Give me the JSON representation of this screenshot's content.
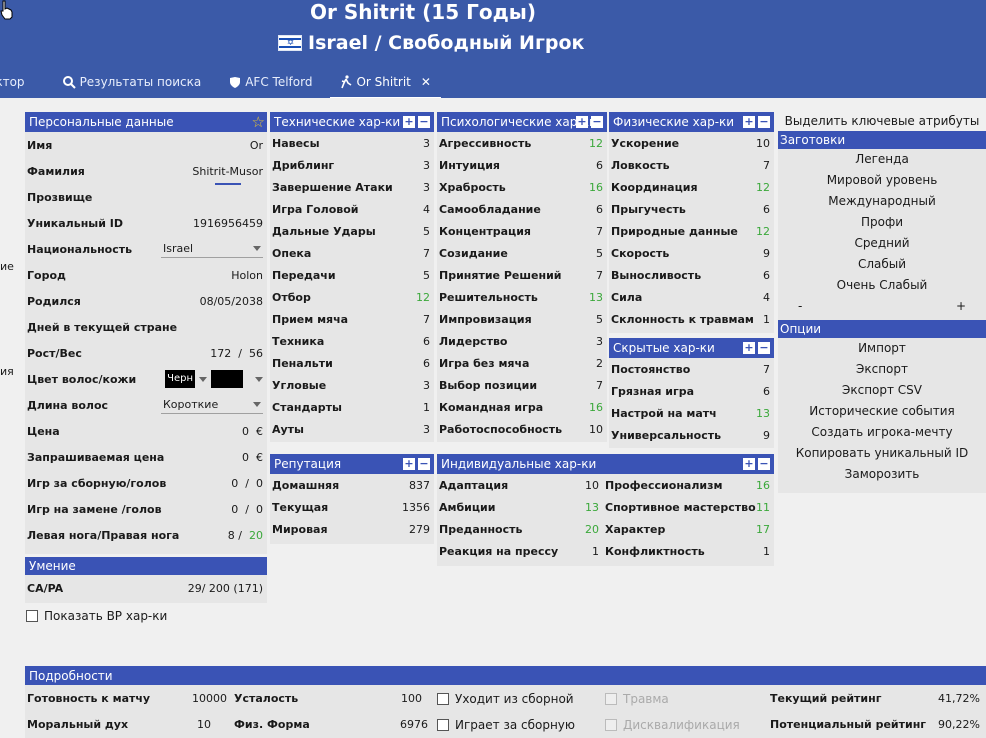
{
  "header": {
    "title": "Or Shitrit (15 Годы)",
    "subtitle": "Israel / Свободный Игрок"
  },
  "tabs": [
    {
      "label": "актор"
    },
    {
      "label": "Результаты поиска"
    },
    {
      "label": "AFC Telford"
    },
    {
      "label": "Or Shitrit"
    }
  ],
  "left_fragments": [
    "ие",
    "ия"
  ],
  "personal": {
    "title": "Персональные данные",
    "rows": [
      {
        "label": "Имя",
        "value": "Or"
      },
      {
        "label": "Фамилия",
        "value": "Shitrit-Musor"
      },
      {
        "label": "Прозвище",
        "value": ""
      },
      {
        "label": "Уникальный ID",
        "value": "1916956459"
      },
      {
        "label": "Национальность",
        "value": "Israel"
      },
      {
        "label": "Город",
        "value": "Holon"
      },
      {
        "label": "Родился",
        "value": "08/05/2038"
      },
      {
        "label": "Дней в текущей стране",
        "value": ""
      },
      {
        "label": "Рост/Вес",
        "value": "172",
        "value2": "56"
      },
      {
        "label": "Цвет волос/кожи",
        "value": "Черн"
      },
      {
        "label": "Длина волос",
        "value": "Короткие"
      },
      {
        "label": "Цена",
        "value": "0",
        "unit": "€"
      },
      {
        "label": "Запрашиваемая цена",
        "value": "0",
        "unit": "€"
      },
      {
        "label": "Игр за сборную/голов",
        "value": "0",
        "value2": "0"
      },
      {
        "label": "Игр на замене /голов",
        "value": "0",
        "value2": "0"
      },
      {
        "label": "Левая нога/Правая нога",
        "value": "8",
        "value2": "20"
      }
    ]
  },
  "ability": {
    "title": "Умение",
    "label": "CA/PA",
    "value": "29/  200 (171)",
    "checkbox_label": "Показать BP хар-ки"
  },
  "technical": {
    "title": "Технические хар-ки",
    "rows": [
      {
        "label": "Навесы",
        "value": "3"
      },
      {
        "label": "Дриблинг",
        "value": "3"
      },
      {
        "label": "Завершение Атаки",
        "value": "3"
      },
      {
        "label": "Игра Головой",
        "value": "4"
      },
      {
        "label": "Дальные Удары",
        "value": "5"
      },
      {
        "label": "Опека",
        "value": "7"
      },
      {
        "label": "Передачи",
        "value": "5"
      },
      {
        "label": "Отбор",
        "value": "12",
        "green": true
      },
      {
        "label": "Прием мяча",
        "value": "7"
      },
      {
        "label": "Техника",
        "value": "6"
      },
      {
        "label": "Пенальти",
        "value": "6"
      },
      {
        "label": "Угловые",
        "value": "3"
      },
      {
        "label": "Стандарты",
        "value": "1"
      },
      {
        "label": "Ауты",
        "value": "3"
      }
    ]
  },
  "mental": {
    "title": "Психологические хар-ки",
    "rows": [
      {
        "label": "Агрессивность",
        "value": "12",
        "green": true
      },
      {
        "label": "Интуиция",
        "value": "6"
      },
      {
        "label": "Храбрость",
        "value": "16",
        "green": true
      },
      {
        "label": "Самообладание",
        "value": "6"
      },
      {
        "label": "Концентрация",
        "value": "7"
      },
      {
        "label": "Созидание",
        "value": "5"
      },
      {
        "label": "Принятие Решений",
        "value": "7"
      },
      {
        "label": "Решительность",
        "value": "13",
        "green": true
      },
      {
        "label": "Импровизация",
        "value": "5"
      },
      {
        "label": "Лидерство",
        "value": "3"
      },
      {
        "label": "Игра без мяча",
        "value": "2"
      },
      {
        "label": "Выбор позиции",
        "value": "7"
      },
      {
        "label": "Командная игра",
        "value": "16",
        "green": true
      },
      {
        "label": "Работоспособность",
        "value": "10"
      }
    ]
  },
  "physical": {
    "title": "Физические хар-ки",
    "rows": [
      {
        "label": "Ускорение",
        "value": "10"
      },
      {
        "label": "Ловкость",
        "value": "7"
      },
      {
        "label": "Координация",
        "value": "12",
        "green": true
      },
      {
        "label": "Прыгучесть",
        "value": "6"
      },
      {
        "label": "Природные данные",
        "value": "12",
        "green": true
      },
      {
        "label": "Скорость",
        "value": "9"
      },
      {
        "label": "Выносливость",
        "value": "6"
      },
      {
        "label": "Сила",
        "value": "4"
      },
      {
        "label": "Склонность к травмам",
        "value": "1"
      }
    ]
  },
  "hidden": {
    "title": "Скрытые хар-ки",
    "rows": [
      {
        "label": "Постоянство",
        "value": "7"
      },
      {
        "label": "Грязная игра",
        "value": "6"
      },
      {
        "label": "Настрой на матч",
        "value": "13",
        "green": true
      },
      {
        "label": "Универсальность",
        "value": "9"
      }
    ]
  },
  "reputation": {
    "title": "Репутация",
    "rows": [
      {
        "label": "Домашняя",
        "value": "837"
      },
      {
        "label": "Текущая",
        "value": "1356"
      },
      {
        "label": "Мировая",
        "value": "279"
      }
    ]
  },
  "individual": {
    "title": "Индивидуальные хар-ки",
    "left": [
      {
        "label": "Адаптация",
        "value": "10"
      },
      {
        "label": "Амбиции",
        "value": "13",
        "green": true
      },
      {
        "label": "Преданность",
        "value": "20",
        "green": true
      },
      {
        "label": "Реакция на прессу",
        "value": "1"
      }
    ],
    "right": [
      {
        "label": "Профессионализм",
        "value": "16",
        "green": true
      },
      {
        "label": "Спортивное мастерство",
        "value": "11",
        "green": true
      },
      {
        "label": "Характер",
        "value": "17",
        "green": true
      },
      {
        "label": "Конфликтность",
        "value": "1"
      }
    ]
  },
  "presets": {
    "highlight": "Выделить ключевые атрибуты",
    "title": "Заготовки",
    "items": [
      "Легенда",
      "Мировой уровень",
      "Международный",
      "Профи",
      "Средний",
      "Слабый",
      "Очень Слабый"
    ],
    "minus": "-",
    "plus": "+"
  },
  "options": {
    "title": "Опции",
    "items": [
      "Импорт",
      "Экспорт",
      "Экспорт CSV",
      "Исторические события",
      "Создать игрока-мечту",
      "Копировать уникальный ID",
      "Заморозить"
    ]
  },
  "details": {
    "title": "Подробности",
    "match_ready_label": "Готовность к матчу",
    "match_ready_value": "10000",
    "fatigue_label": "Усталость",
    "fatigue_value": "100",
    "morale_label": "Моральный дух",
    "morale_value": "10",
    "fitness_label": "Физ. Форма",
    "fitness_value": "6976",
    "retired_intl": "Уходит из сборной",
    "plays_intl": "Играет за сборную",
    "injury": "Травма",
    "ban": "Дисквалификация",
    "cur_rating_label": "Текущий рейтинг",
    "cur_rating_value": "41,72%",
    "pot_rating_label": "Потенциальный рейтинг",
    "pot_rating_value": "90,22%"
  }
}
